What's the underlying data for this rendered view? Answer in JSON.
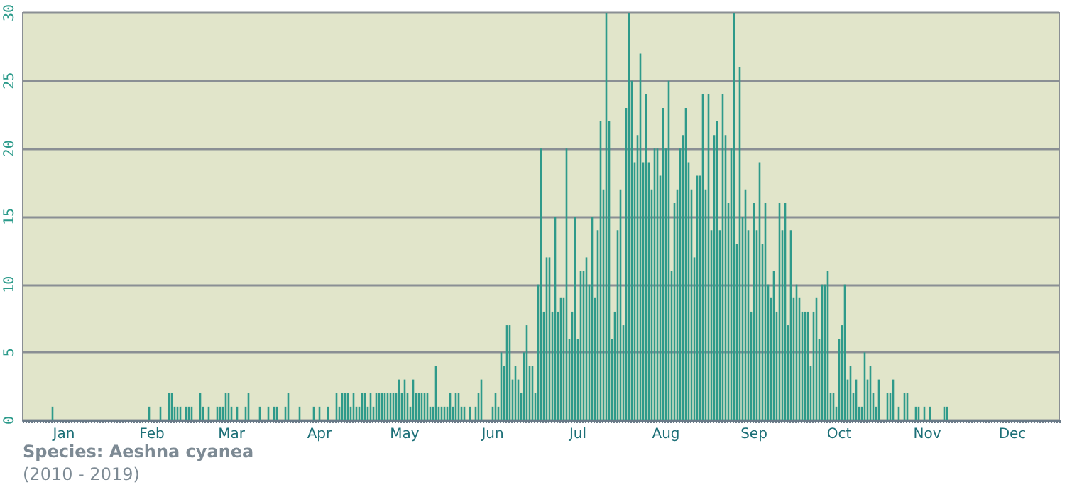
{
  "chart_data": {
    "type": "bar",
    "color": "#2e9a8a",
    "grid": "y",
    "ylim": [
      0,
      30
    ],
    "yticks": [
      0,
      5,
      10,
      15,
      20,
      25,
      30
    ],
    "annotations": [
      "Species: Aeshna cyanea",
      "(2010 - 2019)"
    ],
    "categories": [
      null,
      null,
      null,
      null,
      null,
      null,
      null,
      null,
      null,
      null,
      null,
      null,
      null,
      null,
      "Jan",
      null,
      null,
      null,
      null,
      null,
      null,
      null,
      null,
      null,
      null,
      null,
      null,
      null,
      null,
      null,
      null,
      null,
      null,
      null,
      null,
      null,
      null,
      null,
      null,
      null,
      null,
      null,
      null,
      null,
      null,
      "Feb",
      null,
      null,
      null,
      null,
      null,
      null,
      null,
      null,
      null,
      null,
      null,
      null,
      null,
      null,
      null,
      null,
      null,
      null,
      null,
      null,
      null,
      null,
      null,
      null,
      null,
      null,
      null,
      "Mar",
      null,
      null,
      null,
      null,
      null,
      null,
      null,
      null,
      null,
      null,
      null,
      null,
      null,
      null,
      null,
      null,
      null,
      null,
      null,
      null,
      null,
      null,
      null,
      null,
      null,
      null,
      null,
      null,
      null,
      null,
      "Apr",
      null,
      null,
      null,
      null,
      null,
      null,
      null,
      null,
      null,
      null,
      null,
      null,
      null,
      null,
      null,
      null,
      null,
      null,
      null,
      null,
      null,
      null,
      null,
      null,
      null,
      null,
      null,
      null,
      null,
      "May",
      null,
      null,
      null,
      null,
      null,
      null,
      null,
      null,
      null,
      null,
      null,
      null,
      null,
      null,
      null,
      null,
      null,
      null,
      null,
      null,
      null,
      null,
      null,
      null,
      null,
      null,
      null,
      null,
      null,
      null,
      "Jun",
      null,
      null,
      null,
      null,
      null,
      null,
      null,
      null,
      null,
      null,
      null,
      null,
      null,
      null,
      null,
      null,
      null,
      null,
      null,
      null,
      null,
      null,
      null,
      null,
      null,
      null,
      null,
      null,
      null,
      "Jul",
      null,
      null,
      null,
      null,
      null,
      null,
      null,
      null,
      null,
      null,
      null,
      null,
      null,
      null,
      null,
      null,
      null,
      null,
      null,
      null,
      null,
      null,
      null,
      null,
      null,
      null,
      null,
      null,
      null,
      null,
      "Aug",
      null,
      null,
      null,
      null,
      null,
      null,
      null,
      null,
      null,
      null,
      null,
      null,
      null,
      null,
      null,
      null,
      null,
      null,
      null,
      null,
      null,
      null,
      null,
      null,
      null,
      null,
      null,
      null,
      null,
      null,
      "Sep",
      null,
      null,
      null,
      null,
      null,
      null,
      null,
      null,
      null,
      null,
      null,
      null,
      null,
      null,
      null,
      null,
      null,
      null,
      null,
      null,
      null,
      null,
      null,
      null,
      null,
      null,
      null,
      null,
      null,
      "Oct",
      null,
      null,
      null,
      null,
      null,
      null,
      null,
      null,
      null,
      null,
      null,
      null,
      null,
      null,
      null,
      null,
      null,
      null,
      null,
      null,
      null,
      null,
      null,
      null,
      null,
      null,
      null,
      null,
      null,
      null,
      "Nov",
      null,
      null,
      null,
      null,
      null,
      null,
      null,
      null,
      null,
      null,
      null,
      null,
      null,
      null,
      null,
      null,
      null,
      null,
      null,
      null,
      null,
      null,
      null,
      null,
      null,
      null,
      null,
      null,
      null,
      "Dec",
      null,
      null,
      null,
      null,
      null,
      null,
      null,
      null,
      null,
      null,
      null,
      null,
      null,
      null,
      null,
      null
    ],
    "values": [
      0,
      0,
      0,
      0,
      0,
      0,
      0,
      0,
      0,
      0,
      1,
      0,
      0,
      0,
      0,
      0,
      0,
      0,
      0,
      0,
      0,
      0,
      0,
      0,
      0,
      0,
      0,
      0,
      0,
      0,
      0,
      0,
      0,
      0,
      0,
      0,
      0,
      0,
      0,
      0,
      0,
      0,
      0,
      0,
      1,
      0,
      0,
      0,
      1,
      0,
      0,
      2,
      2,
      1,
      1,
      1,
      0,
      1,
      1,
      1,
      0,
      0,
      2,
      1,
      0,
      1,
      0,
      0,
      1,
      1,
      1,
      2,
      2,
      1,
      0,
      1,
      0,
      0,
      1,
      2,
      0,
      0,
      0,
      1,
      0,
      0,
      1,
      0,
      1,
      1,
      0,
      0,
      1,
      2,
      0,
      0,
      0,
      1,
      0,
      0,
      0,
      0,
      1,
      0,
      1,
      0,
      0,
      1,
      0,
      0,
      2,
      1,
      2,
      2,
      2,
      1,
      2,
      1,
      1,
      2,
      2,
      1,
      2,
      1,
      2,
      2,
      2,
      2,
      2,
      2,
      2,
      2,
      3,
      2,
      3,
      2,
      1,
      3,
      2,
      2,
      2,
      2,
      2,
      1,
      1,
      4,
      1,
      1,
      1,
      1,
      2,
      1,
      2,
      2,
      1,
      1,
      0,
      1,
      0,
      1,
      2,
      3,
      0,
      0,
      0,
      1,
      2,
      1,
      5,
      4,
      7,
      7,
      3,
      4,
      3,
      2,
      5,
      7,
      4,
      4,
      2,
      10,
      20,
      8,
      12,
      12,
      8,
      15,
      8,
      9,
      9,
      20,
      6,
      8,
      15,
      6,
      11,
      11,
      12,
      10,
      15,
      9,
      14,
      22,
      17,
      30,
      22,
      6,
      8,
      14,
      17,
      7,
      23,
      30,
      25,
      19,
      21,
      27,
      19,
      24,
      19,
      17,
      20,
      20,
      18,
      23,
      20,
      25,
      11,
      16,
      17,
      20,
      21,
      23,
      19,
      17,
      12,
      18,
      18,
      24,
      17,
      24,
      14,
      21,
      22,
      14,
      24,
      21,
      16,
      20,
      30,
      13,
      26,
      15,
      17,
      14,
      8,
      16,
      14,
      19,
      13,
      16,
      10,
      9,
      11,
      8,
      16,
      14,
      16,
      7,
      14,
      9,
      10,
      9,
      8,
      8,
      8,
      4,
      8,
      9,
      6,
      10,
      10,
      11,
      2,
      2,
      1,
      6,
      7,
      10,
      3,
      4,
      2,
      3,
      1,
      1,
      5,
      3,
      4,
      2,
      1,
      3,
      0,
      0,
      2,
      2,
      3,
      0,
      1,
      0,
      2,
      2,
      0,
      0,
      1,
      1,
      0,
      1,
      0,
      1,
      0,
      0,
      0,
      0,
      1,
      1,
      0,
      0,
      0,
      0,
      0,
      0,
      0,
      0,
      0,
      0,
      0,
      0,
      0,
      0,
      0,
      0,
      0,
      0,
      0,
      0,
      0,
      0,
      0,
      0,
      0,
      0,
      0,
      0,
      0,
      0,
      0,
      0,
      0,
      0,
      0,
      0,
      0,
      0,
      0
    ]
  }
}
